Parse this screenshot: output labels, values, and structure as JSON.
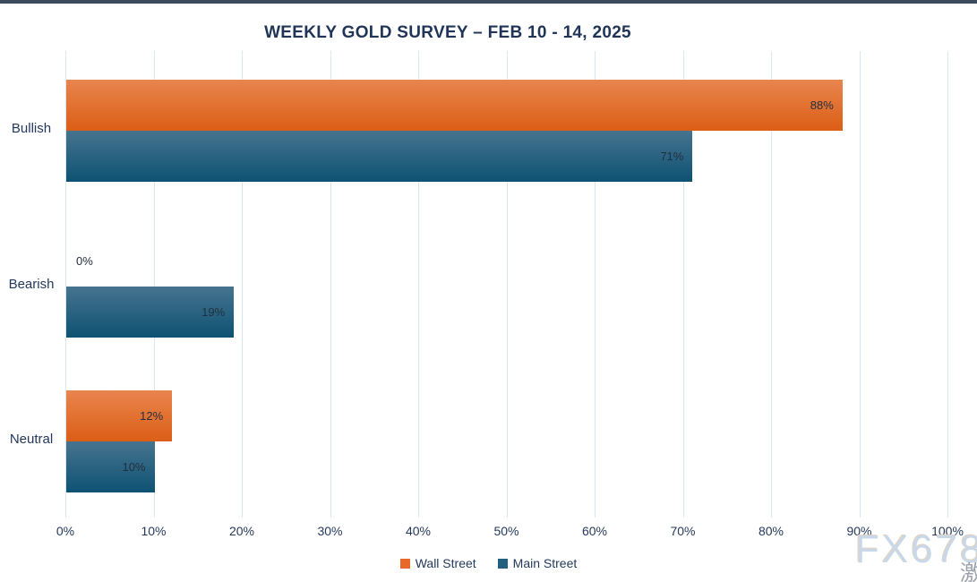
{
  "watermark": {
    "text": "FX678",
    "cjk_text": "激"
  },
  "colors": {
    "background": "#FFFFFF",
    "top_strip": "#3C4A5E",
    "title_text": "#1F3456",
    "axis_text": "#24395C",
    "value_label_text": "#222F3F",
    "gridline": "#D9E6F3",
    "wall_street_orange": "#E8682A",
    "main_street_blue": "#21607F"
  },
  "chart_data": {
    "type": "bar",
    "orientation": "horizontal",
    "title": "WEEKLY GOLD SURVEY – FEB 10 - 14, 2025",
    "categories": [
      "Bullish",
      "Bearish",
      "Neutral"
    ],
    "series": [
      {
        "name": "Wall Street",
        "values": [
          88,
          0,
          12
        ],
        "value_labels": [
          "88%",
          "0%",
          "12%"
        ],
        "legend_color": "#E8682A",
        "gradient_top": "#E9854F",
        "gradient_bottom": "#DB5E16"
      },
      {
        "name": "Main Street",
        "values": [
          71,
          19,
          10
        ],
        "value_labels": [
          "71%",
          "19%",
          "10%"
        ],
        "legend_color": "#21607F",
        "gradient_top": "#47748F",
        "gradient_bottom": "#0E5273"
      }
    ],
    "xlim": [
      0,
      100
    ],
    "x_tick_labels": [
      "0%",
      "10%",
      "20%",
      "30%",
      "40%",
      "50%",
      "60%",
      "70%",
      "80%",
      "90%",
      "100%"
    ],
    "x_tick_values": [
      0,
      10,
      20,
      30,
      40,
      50,
      60,
      70,
      80,
      90,
      100
    ],
    "grid": true,
    "legend_position": "bottom",
    "value_label_suffix": "%"
  }
}
